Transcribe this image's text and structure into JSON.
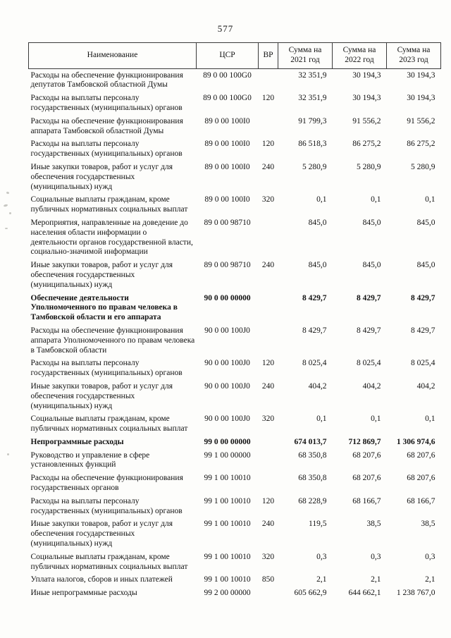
{
  "page": {
    "number": "577"
  },
  "table": {
    "headers": [
      "Наименование",
      "ЦСР",
      "ВР",
      "Сумма на 2021 год",
      "Сумма на 2022 год",
      "Сумма на 2023 год"
    ],
    "rows": [
      {
        "name": "Расходы на обеспечение функционирования депутатов Тамбовской областной Думы",
        "csr": "89 0 00 100G0",
        "vr": "",
        "y2021": "32 351,9",
        "y2022": "30 194,3",
        "y2023": "30 194,3",
        "bold": false
      },
      {
        "name": "Расходы на выплаты персоналу государственных (муниципальных) органов",
        "csr": "89 0 00 100G0",
        "vr": "120",
        "y2021": "32 351,9",
        "y2022": "30 194,3",
        "y2023": "30 194,3",
        "bold": false
      },
      {
        "name": "Расходы на обеспечение функционирования аппарата Тамбовской областной Думы",
        "csr": "89 0 00 100I0",
        "vr": "",
        "y2021": "91 799,3",
        "y2022": "91 556,2",
        "y2023": "91 556,2",
        "bold": false
      },
      {
        "name": "Расходы на выплаты персоналу государственных (муниципальных) органов",
        "csr": "89 0 00 100I0",
        "vr": "120",
        "y2021": "86 518,3",
        "y2022": "86 275,2",
        "y2023": "86 275,2",
        "bold": false
      },
      {
        "name": "Иные закупки товаров, работ и услуг для обеспечения государственных (муниципальных) нужд",
        "csr": "89 0 00 100I0",
        "vr": "240",
        "y2021": "5 280,9",
        "y2022": "5 280,9",
        "y2023": "5 280,9",
        "bold": false
      },
      {
        "name": "Социальные выплаты гражданам, кроме публичных нормативных социальных выплат",
        "csr": "89 0 00 100I0",
        "vr": "320",
        "y2021": "0,1",
        "y2022": "0,1",
        "y2023": "0,1",
        "bold": false
      },
      {
        "name": "Мероприятия, направленные на доведение до населения области информации о деятельности органов государственной власти, социально-значимой информации",
        "csr": "89 0 00 98710",
        "vr": "",
        "y2021": "845,0",
        "y2022": "845,0",
        "y2023": "845,0",
        "bold": false
      },
      {
        "name": "Иные закупки товаров, работ и услуг для обеспечения государственных (муниципальных) нужд",
        "csr": "89 0 00 98710",
        "vr": "240",
        "y2021": "845,0",
        "y2022": "845,0",
        "y2023": "845,0",
        "bold": false
      },
      {
        "name": "Обеспечение деятельности Уполномоченного по правам человека в Тамбовской области и его аппарата",
        "csr": "90 0 00 00000",
        "vr": "",
        "y2021": "8 429,7",
        "y2022": "8 429,7",
        "y2023": "8 429,7",
        "bold": true
      },
      {
        "name": "Расходы на обеспечение функционирования аппарата Уполномоченного по правам человека в Тамбовской области",
        "csr": "90 0 00 100J0",
        "vr": "",
        "y2021": "8 429,7",
        "y2022": "8 429,7",
        "y2023": "8 429,7",
        "bold": false
      },
      {
        "name": "Расходы на выплаты персоналу государственных (муниципальных) органов",
        "csr": "90 0 00 100J0",
        "vr": "120",
        "y2021": "8 025,4",
        "y2022": "8 025,4",
        "y2023": "8 025,4",
        "bold": false
      },
      {
        "name": "Иные закупки товаров, работ и услуг для обеспечения государственных (муниципальных) нужд",
        "csr": "90 0 00 100J0",
        "vr": "240",
        "y2021": "404,2",
        "y2022": "404,2",
        "y2023": "404,2",
        "bold": false
      },
      {
        "name": "Социальные выплаты гражданам, кроме публичных нормативных социальных выплат",
        "csr": "90 0 00 100J0",
        "vr": "320",
        "y2021": "0,1",
        "y2022": "0,1",
        "y2023": "0,1",
        "bold": false
      },
      {
        "name": "Непрограммные расходы",
        "csr": "99 0 00 00000",
        "vr": "",
        "y2021": "674 013,7",
        "y2022": "712 869,7",
        "y2023": "1 306 974,6",
        "bold": true
      },
      {
        "name": "Руководство и управление в сфере установленных функций",
        "csr": "99 1 00 00000",
        "vr": "",
        "y2021": "68 350,8",
        "y2022": "68 207,6",
        "y2023": "68 207,6",
        "bold": false
      },
      {
        "name": "Расходы на обеспечение функционирования государственных органов",
        "csr": "99 1 00 10010",
        "vr": "",
        "y2021": "68 350,8",
        "y2022": "68 207,6",
        "y2023": "68 207,6",
        "bold": false
      },
      {
        "name": "Расходы на выплаты персоналу государственных (муниципальных) органов",
        "csr": "99 1 00 10010",
        "vr": "120",
        "y2021": "68 228,9",
        "y2022": "68 166,7",
        "y2023": "68 166,7",
        "bold": false
      },
      {
        "name": "Иные закупки товаров, работ и услуг для обеспечения государственных (муниципальных) нужд",
        "csr": "99 1 00 10010",
        "vr": "240",
        "y2021": "119,5",
        "y2022": "38,5",
        "y2023": "38,5",
        "bold": false
      },
      {
        "name": "Социальные выплаты гражданам, кроме публичных нормативных социальных выплат",
        "csr": "99 1 00 10010",
        "vr": "320",
        "y2021": "0,3",
        "y2022": "0,3",
        "y2023": "0,3",
        "bold": false
      },
      {
        "name": "Уплата налогов, сборов и иных платежей",
        "csr": "99 1 00 10010",
        "vr": "850",
        "y2021": "2,1",
        "y2022": "2,1",
        "y2023": "2,1",
        "bold": false
      },
      {
        "name": "Иные непрограммные расходы",
        "csr": "99 2 00 00000",
        "vr": "",
        "y2021": "605 662,9",
        "y2022": "644 662,1",
        "y2023": "1 238 767,0",
        "bold": false
      }
    ]
  }
}
